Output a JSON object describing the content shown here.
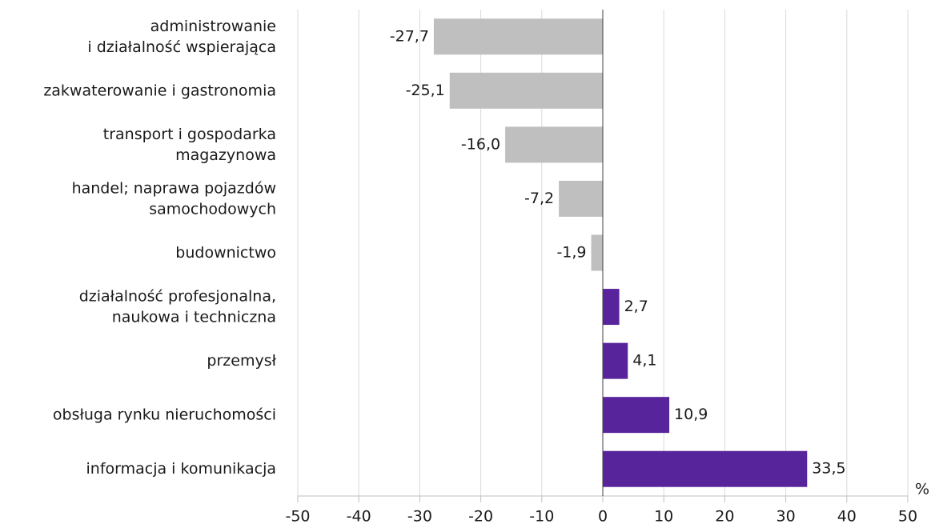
{
  "chart_data": {
    "type": "barh",
    "categories": [
      "administrowanie\ni działalność wspierająca",
      "zakwaterowanie i gastronomia",
      "transport i gospodarka\nmagazynowa",
      "handel; naprawa pojazdów\nsamochodowych",
      "budownictwo",
      "działalność profesjonalna,\nnaukowa i techniczna",
      "przemysł",
      "obsługa rynku nieruchomości",
      "informacja i komunikacja"
    ],
    "values": [
      -27.7,
      -25.1,
      -16.0,
      -7.2,
      -1.9,
      2.7,
      4.1,
      10.9,
      33.5
    ],
    "value_labels": [
      "-27,7",
      "-25,1",
      "-16,0",
      "-7,2",
      "-1,9",
      "2,7",
      "4,1",
      "10,9",
      "33,5"
    ],
    "colors": [
      "#bfbfbf",
      "#bfbfbf",
      "#bfbfbf",
      "#bfbfbf",
      "#bfbfbf",
      "#57249b",
      "#57249b",
      "#57249b",
      "#57249b"
    ],
    "x_label": "%",
    "xlim": [
      -50,
      50
    ],
    "xticks": [
      -50,
      -40,
      -30,
      -20,
      -10,
      0,
      10,
      20,
      30,
      40,
      50
    ],
    "grid": true
  }
}
